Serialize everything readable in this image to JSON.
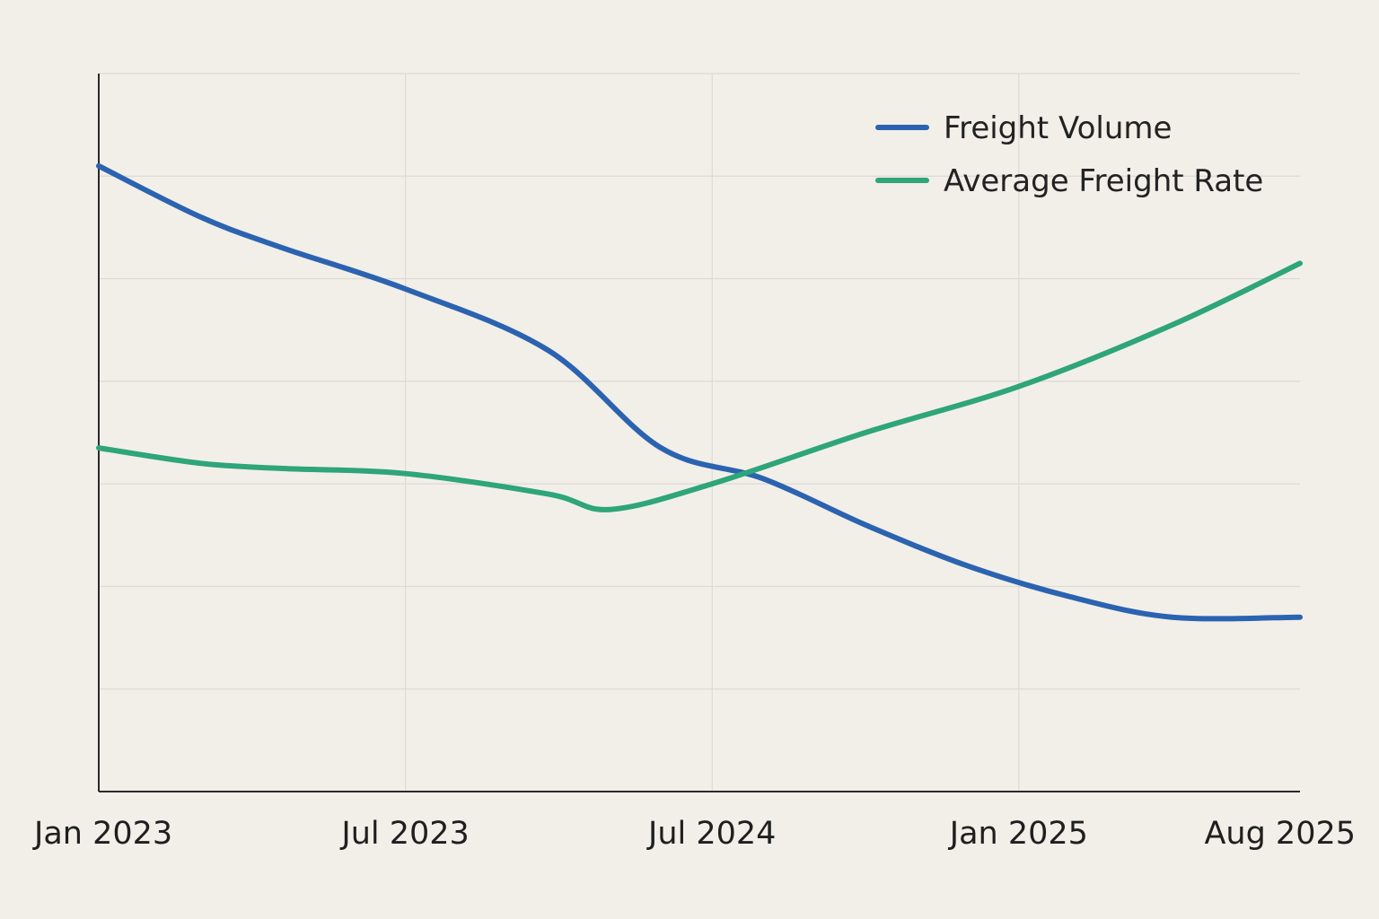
{
  "chart_data": {
    "type": "line",
    "title": "",
    "xlabel": "",
    "ylabel": "",
    "grid": true,
    "legend_position": "top-right",
    "x_ticks": [
      "Jan 2023",
      "Jul 2023",
      "Jul 2024",
      "Jan 2025",
      "Aug 2025"
    ],
    "x_tick_positions": [
      0,
      6,
      12,
      18,
      23.5
    ],
    "xlim": [
      0,
      23.5
    ],
    "ylim": [
      0,
      7
    ],
    "series": [
      {
        "name": "Freight Volume",
        "color": "#2b63b0",
        "x": [
          0,
          2,
          3.6,
          6,
          8.8,
          11,
          13,
          15,
          17,
          19,
          21,
          23.5
        ],
        "values": [
          6.1,
          5.6,
          5.3,
          4.9,
          4.3,
          3.35,
          3.05,
          2.6,
          2.2,
          1.9,
          1.7,
          1.7
        ]
      },
      {
        "name": "Average Freight Rate",
        "color": "#2ea57a",
        "x": [
          0,
          2,
          3.6,
          6,
          8.8,
          10,
          12,
          15,
          18,
          21,
          23.5
        ],
        "values": [
          3.35,
          3.2,
          3.15,
          3.1,
          2.9,
          2.75,
          3.0,
          3.5,
          3.95,
          4.55,
          5.15
        ]
      }
    ]
  }
}
